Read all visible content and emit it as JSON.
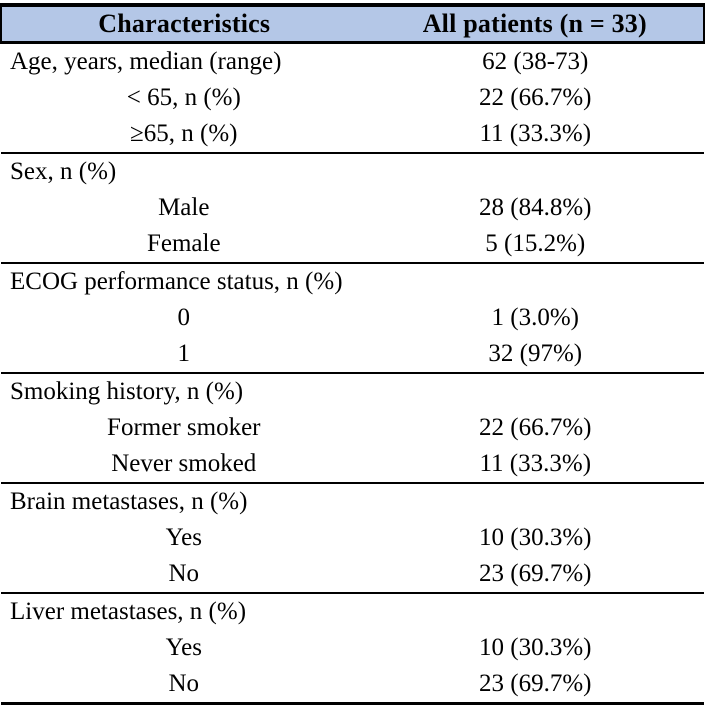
{
  "table": {
    "columns": [
      "Characteristics",
      "All patients (n = 33)"
    ],
    "colors": {
      "header_bg": "#b4c7e7",
      "border": "#000000",
      "text": "#000000"
    },
    "sections": [
      {
        "rows": [
          {
            "label": "Age, years, median (range)",
            "value": "62 (38-73)",
            "indent": false
          },
          {
            "label": "< 65, n (%)",
            "value": "22 (66.7%)",
            "indent": true
          },
          {
            "label": "≥65, n (%)",
            "value": "11 (33.3%)",
            "indent": true
          }
        ]
      },
      {
        "rows": [
          {
            "label": "Sex, n (%)",
            "value": "",
            "indent": false
          },
          {
            "label": "Male",
            "value": "28 (84.8%)",
            "indent": true
          },
          {
            "label": "Female",
            "value": "5 (15.2%)",
            "indent": true
          }
        ]
      },
      {
        "rows": [
          {
            "label": "ECOG performance status, n (%)",
            "value": "",
            "indent": false
          },
          {
            "label": "0",
            "value": "1 (3.0%)",
            "indent": true
          },
          {
            "label": "1",
            "value": "32 (97%)",
            "indent": true
          }
        ]
      },
      {
        "rows": [
          {
            "label": "Smoking history, n (%)",
            "value": "",
            "indent": false
          },
          {
            "label": "Former smoker",
            "value": "22 (66.7%)",
            "indent": true
          },
          {
            "label": "Never smoked",
            "value": "11 (33.3%)",
            "indent": true
          }
        ]
      },
      {
        "rows": [
          {
            "label": "Brain metastases, n (%)",
            "value": "",
            "indent": false
          },
          {
            "label": "Yes",
            "value": "10 (30.3%)",
            "indent": true
          },
          {
            "label": "No",
            "value": "23 (69.7%)",
            "indent": true
          }
        ]
      },
      {
        "rows": [
          {
            "label": "Liver metastases, n (%)",
            "value": "",
            "indent": false
          },
          {
            "label": "Yes",
            "value": "10 (30.3%)",
            "indent": true
          },
          {
            "label": "No",
            "value": "23 (69.7%)",
            "indent": true
          }
        ]
      }
    ]
  }
}
